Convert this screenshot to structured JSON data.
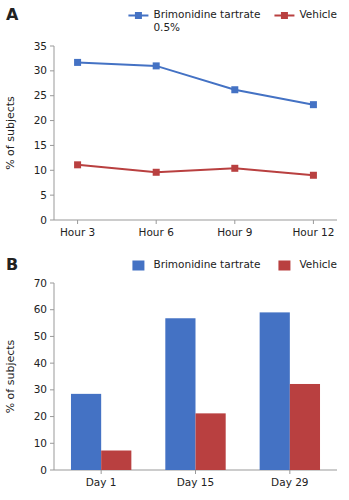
{
  "chart_data": [
    {
      "type": "line",
      "title": "A",
      "categories": [
        "Hour 3",
        "Hour 6",
        "Hour 9",
        "Hour 12"
      ],
      "series": [
        {
          "name": "Brimonidine tartrate\n0.5%",
          "color": "#4472c4",
          "marker": "square",
          "values": [
            31.7,
            31.0,
            26.2,
            23.2
          ]
        },
        {
          "name": "Vehicle",
          "color": "#b94040",
          "marker": "square",
          "values": [
            11.1,
            9.6,
            10.4,
            9.0
          ]
        }
      ],
      "ylabel": "% of subjects",
      "ylim": [
        0,
        35
      ],
      "yticks": [
        0,
        5,
        10,
        15,
        20,
        25,
        30,
        35
      ],
      "legend": "upper right"
    },
    {
      "type": "bar",
      "title": "B",
      "categories": [
        "Day 1",
        "Day 15",
        "Day 29"
      ],
      "series": [
        {
          "name": "Brimonidine tartrate",
          "color": "#4472c4",
          "values": [
            28.5,
            56.8,
            59.0
          ]
        },
        {
          "name": "Vehicle",
          "color": "#b94040",
          "values": [
            7.3,
            21.2,
            32.2
          ]
        }
      ],
      "ylabel": "% of subjects",
      "ylim": [
        0,
        70
      ],
      "yticks": [
        0,
        10,
        20,
        30,
        40,
        50,
        60,
        70
      ],
      "legend": "upper right"
    }
  ]
}
